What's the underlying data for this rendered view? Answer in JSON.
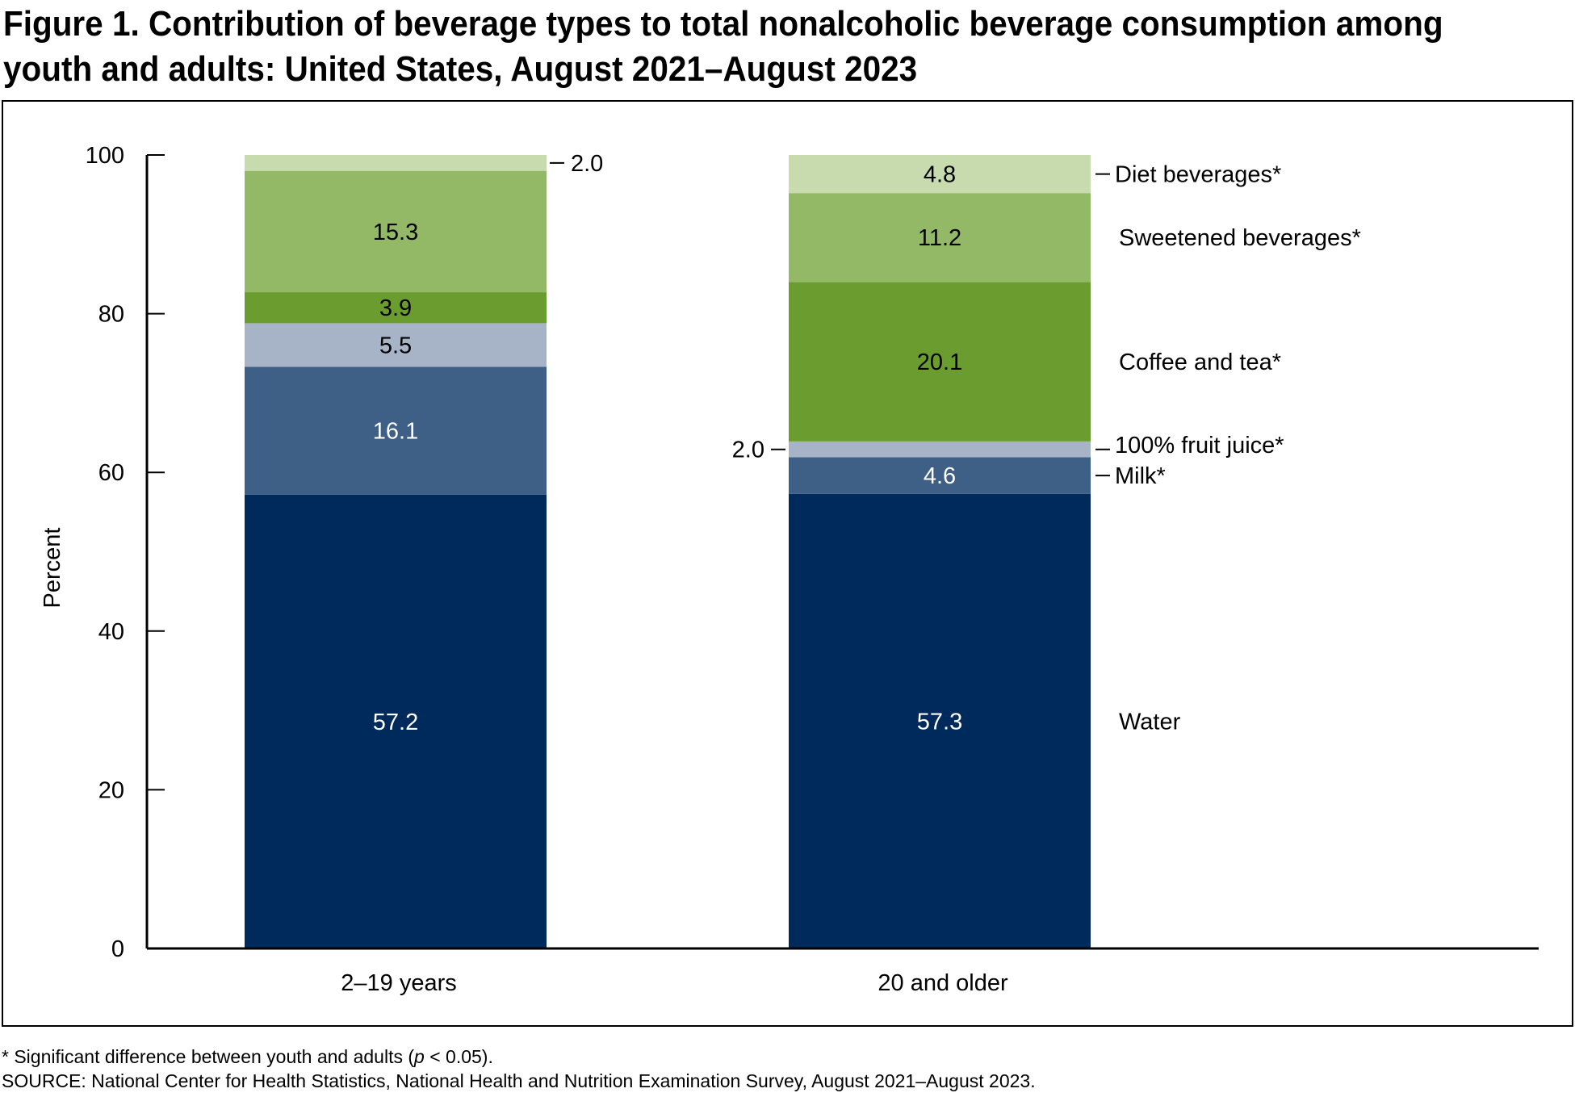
{
  "title": "Figure 1. Contribution of beverage types to total nonalcoholic beverage consumption among youth and adults: United States, August 2021–August 2023",
  "footnotes": {
    "significance_prefix": "* Significant difference between youth and adults (",
    "significance_p": "p",
    "significance_suffix": " < 0.05).",
    "source": "SOURCE: National Center for Health Statistics, National Health and Nutrition Examination Survey, August 2021–August 2023."
  },
  "chart_data": {
    "type": "bar",
    "stacked": true,
    "categories": [
      "2–19 years",
      "20 and older"
    ],
    "ylabel": "Percent",
    "xlabel": "",
    "ylim": [
      0,
      100
    ],
    "yticks": [
      0,
      20,
      40,
      60,
      80,
      100
    ],
    "grid": false,
    "legend_placement": "right (direct labels)",
    "series": [
      {
        "name": "Water",
        "values": [
          57.2,
          57.3
        ],
        "labels": [
          "57.2",
          "57.3"
        ],
        "color": "#002a5c"
      },
      {
        "name": "Milk*",
        "values": [
          16.1,
          4.6
        ],
        "labels": [
          "16.1",
          "4.6"
        ],
        "color": "#3e5f86"
      },
      {
        "name": "100% fruit juice*",
        "values": [
          5.5,
          2.0
        ],
        "labels": [
          "5.5",
          "2.0"
        ],
        "color": "#a7b4c7"
      },
      {
        "name": "Coffee and tea*",
        "values": [
          3.9,
          20.1
        ],
        "labels": [
          "3.9",
          "20.1"
        ],
        "color": "#6a9c30"
      },
      {
        "name": "Sweetened beverages*",
        "values": [
          15.3,
          11.2
        ],
        "labels": [
          "15.3",
          "11.2"
        ],
        "color": "#93b866"
      },
      {
        "name": "Diet beverages*",
        "values": [
          2.0,
          4.8
        ],
        "labels": [
          "2.0",
          "4.8"
        ],
        "color": "#c7dbae"
      }
    ]
  }
}
